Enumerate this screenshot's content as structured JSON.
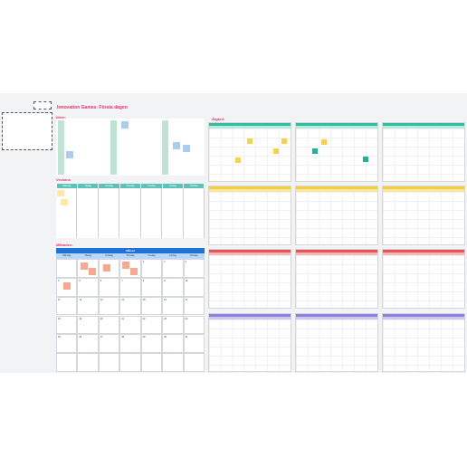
{
  "board": {
    "title": "Innovation Games: Första dagen",
    "logo_text": "",
    "legend": {
      "lines": [
        "",
        "",
        "",
        "",
        "",
        "",
        "",
        "",
        ""
      ]
    }
  },
  "sections": {
    "top_left_label": "Idéer:",
    "middle_left_label": "Veckans",
    "bottom_left_label": "Månaden:",
    "right_label": "Åtgärd:"
  },
  "weekly": {
    "days": [
      "Måndag",
      "Tisdag",
      "Onsdag",
      "Torsdag",
      "Fredag",
      "Lördag",
      "Söndag"
    ]
  },
  "monthly": {
    "month": "Månad",
    "days": [
      "Måndag",
      "Tisdag",
      "Onsdag",
      "Torsdag",
      "Fredag",
      "Lördag",
      "Söndag"
    ],
    "numbers": [
      "",
      "",
      "",
      "",
      "1",
      "2",
      "3",
      "4",
      "5",
      "6",
      "7",
      "8",
      "9",
      "10",
      "11",
      "12",
      "13",
      "14",
      "15",
      "16",
      "17",
      "18",
      "19",
      "20",
      "21",
      "22",
      "23",
      "24",
      "25",
      "26",
      "27",
      "28",
      "29",
      "30",
      "31",
      "",
      "",
      "",
      "",
      "",
      "",
      ""
    ]
  },
  "colors": {
    "accent": "#e8356b",
    "teal": "#5bc3b9",
    "green_bar": "#bfe2d2",
    "blue_month": "#1e73d8",
    "blue_days": "#bcd6f5",
    "yellow_sticky": "#f9d24a",
    "light_yellow_sticky": "#fbe9a5",
    "blue_sticky": "#a9ccef",
    "salmon_sticky": "#f6a98f",
    "teal_sticky": "#20b39a",
    "cal_green": "#2dbfa2",
    "cal_yellow": "#f5cd3d",
    "cal_red": "#e5525a",
    "cal_purple": "#8a7fd9"
  }
}
